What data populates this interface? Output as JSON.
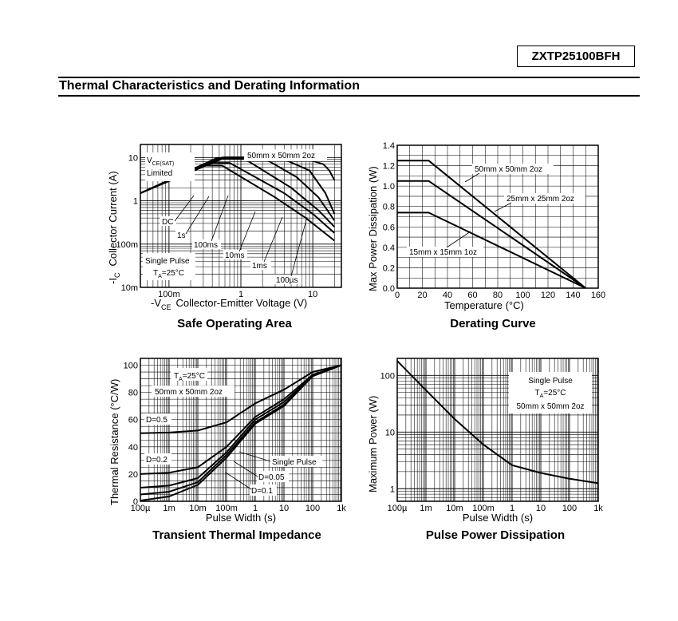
{
  "header": {
    "part_number": "ZXTP25100BFH",
    "section_title": "Thermal Characteristics and Derating Information"
  },
  "chart_data": [
    {
      "type": "line",
      "caption": "Safe Operating Area",
      "xlabel_prefix": "-V",
      "xlabel_sub": "CE",
      "xlabel_text": "Collector-Emitter Voltage (V)",
      "ylabel_prefix": "-I",
      "ylabel_sub": "C",
      "ylabel_text": "Collector Current (A)",
      "x_scale": "log",
      "y_scale": "log",
      "xlim": [
        0.04,
        25
      ],
      "ylim": [
        0.01,
        20
      ],
      "x_ticks": [
        {
          "v": 0.1,
          "label": "100m"
        },
        {
          "v": 1,
          "label": "1"
        },
        {
          "v": 10,
          "label": "10"
        }
      ],
      "y_ticks": [
        {
          "v": 0.01,
          "label": "10m"
        },
        {
          "v": 0.1,
          "label": "100m"
        },
        {
          "v": 1,
          "label": "1"
        },
        {
          "v": 10,
          "label": "10"
        }
      ],
      "grid": true,
      "annotations": {
        "vce_sat_main": "V",
        "vce_sat_sub": "CE(SAT)",
        "limited": "Limited",
        "board": "50mm x 50mm 2oz",
        "single_pulse": "Single Pulse",
        "ta_main": "T",
        "ta_sub": "A",
        "ta_rest": "=25°C"
      },
      "series": [
        {
          "name": "DC",
          "points": [
            [
              0.04,
              1.5
            ],
            [
              0.3,
              6.5
            ],
            [
              0.55,
              6.5
            ],
            [
              3,
              1.2
            ],
            [
              8,
              0.4
            ],
            [
              20,
              0.12
            ]
          ]
        },
        {
          "name": "1s",
          "points": [
            [
              0.04,
              1.5
            ],
            [
              0.35,
              7.5
            ],
            [
              0.7,
              7.5
            ],
            [
              4,
              1.5
            ],
            [
              10,
              0.5
            ],
            [
              20,
              0.18
            ]
          ]
        },
        {
          "name": "100ms",
          "points": [
            [
              0.04,
              1.5
            ],
            [
              0.45,
              9.5
            ],
            [
              1.1,
              9.5
            ],
            [
              5,
              2
            ],
            [
              12,
              0.6
            ],
            [
              20,
              0.25
            ]
          ]
        },
        {
          "name": "10ms",
          "points": [
            [
              0.04,
              1.5
            ],
            [
              0.55,
              10
            ],
            [
              2,
              10
            ],
            [
              6,
              3.5
            ],
            [
              12,
              1.2
            ],
            [
              20,
              0.35
            ]
          ]
        },
        {
          "name": "1ms",
          "points": [
            [
              0.04,
              1.5
            ],
            [
              0.6,
              10
            ],
            [
              3.5,
              10
            ],
            [
              9,
              5
            ],
            [
              15,
              1.5
            ],
            [
              20,
              0.5
            ]
          ]
        },
        {
          "name": "100µs",
          "points": [
            [
              0.04,
              1.5
            ],
            [
              0.6,
              10
            ],
            [
              7,
              10
            ],
            [
              14,
              7
            ],
            [
              17,
              5
            ],
            [
              20,
              3
            ]
          ]
        }
      ]
    },
    {
      "type": "line",
      "caption": "Derating Curve",
      "xlabel_text": "Temperature (°C)",
      "ylabel_text": "Max Power Dissipation (W)",
      "x_scale": "linear",
      "y_scale": "linear",
      "xlim": [
        0,
        160
      ],
      "ylim": [
        0,
        1.4
      ],
      "x_ticks": [
        {
          "v": 0,
          "label": "0"
        },
        {
          "v": 20,
          "label": "20"
        },
        {
          "v": 40,
          "label": "40"
        },
        {
          "v": 60,
          "label": "60"
        },
        {
          "v": 80,
          "label": "80"
        },
        {
          "v": 100,
          "label": "100"
        },
        {
          "v": 120,
          "label": "120"
        },
        {
          "v": 140,
          "label": "140"
        },
        {
          "v": 160,
          "label": "160"
        }
      ],
      "y_ticks": [
        {
          "v": 0,
          "label": "0.0"
        },
        {
          "v": 0.2,
          "label": "0.2"
        },
        {
          "v": 0.4,
          "label": "0.4"
        },
        {
          "v": 0.6,
          "label": "0.6"
        },
        {
          "v": 0.8,
          "label": "0.8"
        },
        {
          "v": 1.0,
          "label": "1.0"
        },
        {
          "v": 1.2,
          "label": "1.2"
        },
        {
          "v": 1.4,
          "label": "1.4"
        }
      ],
      "grid": true,
      "series": [
        {
          "name": "50mm x 50mm 2oz",
          "points": [
            [
              0,
              1.25
            ],
            [
              25,
              1.25
            ],
            [
              150,
              0
            ]
          ]
        },
        {
          "name": "25mm x 25mm 2oz",
          "points": [
            [
              0,
              1.05
            ],
            [
              25,
              1.05
            ],
            [
              150,
              0
            ]
          ]
        },
        {
          "name": "15mm x 15mm 1oz",
          "points": [
            [
              0,
              0.74
            ],
            [
              25,
              0.74
            ],
            [
              150,
              0
            ]
          ]
        }
      ]
    },
    {
      "type": "line",
      "caption": "Transient Thermal Impedance",
      "xlabel_text": "Pulse Width (s)",
      "ylabel_text": "Thermal Resistance (°C/W)",
      "x_scale": "log",
      "y_scale": "linear",
      "xlim": [
        0.0001,
        1000
      ],
      "ylim": [
        0,
        105
      ],
      "x_ticks": [
        {
          "v": 0.0001,
          "label": "100µ"
        },
        {
          "v": 0.001,
          "label": "1m"
        },
        {
          "v": 0.01,
          "label": "10m"
        },
        {
          "v": 0.1,
          "label": "100m"
        },
        {
          "v": 1,
          "label": "1"
        },
        {
          "v": 10,
          "label": "10"
        },
        {
          "v": 100,
          "label": "100"
        },
        {
          "v": 1000,
          "label": "1k"
        }
      ],
      "y_ticks": [
        {
          "v": 0,
          "label": "0"
        },
        {
          "v": 20,
          "label": "20"
        },
        {
          "v": 40,
          "label": "40"
        },
        {
          "v": 60,
          "label": "60"
        },
        {
          "v": 80,
          "label": "80"
        },
        {
          "v": 100,
          "label": "100"
        }
      ],
      "grid": true,
      "annotations": {
        "ta_main": "T",
        "ta_sub": "A",
        "ta_rest": "=25°C",
        "board": "50mm x 50mm 2oz"
      },
      "series": [
        {
          "name": "D=0.5",
          "points": [
            [
              0.0001,
              50
            ],
            [
              0.001,
              50.5
            ],
            [
              0.01,
              52
            ],
            [
              0.1,
              58
            ],
            [
              1,
              72
            ],
            [
              10,
              82
            ],
            [
              100,
              95
            ],
            [
              1000,
              100
            ]
          ]
        },
        {
          "name": "D=0.2",
          "points": [
            [
              0.0001,
              20
            ],
            [
              0.001,
              21
            ],
            [
              0.01,
              25
            ],
            [
              0.1,
              40
            ],
            [
              1,
              62
            ],
            [
              10,
              75
            ],
            [
              100,
              93
            ],
            [
              1000,
              100
            ]
          ]
        },
        {
          "name": "D=0.1",
          "points": [
            [
              0.0001,
              10
            ],
            [
              0.001,
              11.5
            ],
            [
              0.01,
              17
            ],
            [
              0.1,
              36
            ],
            [
              1,
              60
            ],
            [
              10,
              73
            ],
            [
              100,
              92
            ],
            [
              1000,
              100
            ]
          ]
        },
        {
          "name": "D=0.05",
          "points": [
            [
              0.0001,
              5
            ],
            [
              0.001,
              7
            ],
            [
              0.01,
              14
            ],
            [
              0.1,
              34
            ],
            [
              1,
              58
            ],
            [
              10,
              71
            ],
            [
              100,
              92
            ],
            [
              1000,
              100
            ]
          ]
        },
        {
          "name": "Single Pulse",
          "points": [
            [
              0.0001,
              0.5
            ],
            [
              0.001,
              3.5
            ],
            [
              0.01,
              12
            ],
            [
              0.1,
              32
            ],
            [
              1,
              57
            ],
            [
              10,
              70
            ],
            [
              100,
              92
            ],
            [
              1000,
              100
            ]
          ]
        }
      ]
    },
    {
      "type": "line",
      "caption": "Pulse Power Dissipation",
      "xlabel_text": "Pulse Width (s)",
      "ylabel_text": "Maximum Power (W)",
      "x_scale": "log",
      "y_scale": "log",
      "xlim": [
        0.0001,
        1000
      ],
      "ylim": [
        0.6,
        200
      ],
      "x_ticks": [
        {
          "v": 0.0001,
          "label": "100µ"
        },
        {
          "v": 0.001,
          "label": "1m"
        },
        {
          "v": 0.01,
          "label": "10m"
        },
        {
          "v": 0.1,
          "label": "100m"
        },
        {
          "v": 1,
          "label": "1"
        },
        {
          "v": 10,
          "label": "10"
        },
        {
          "v": 100,
          "label": "100"
        },
        {
          "v": 1000,
          "label": "1k"
        }
      ],
      "y_ticks": [
        {
          "v": 1,
          "label": "1"
        },
        {
          "v": 10,
          "label": "10"
        },
        {
          "v": 100,
          "label": "100"
        }
      ],
      "grid": true,
      "annotations": {
        "single_pulse": "Single Pulse",
        "ta_main": "T",
        "ta_sub": "A",
        "ta_rest": "=25°C",
        "board": "50mm x 50mm 2oz"
      },
      "series": [
        {
          "name": "Single Pulse",
          "points": [
            [
              0.0001,
              180
            ],
            [
              0.001,
              55
            ],
            [
              0.01,
              17
            ],
            [
              0.1,
              6
            ],
            [
              1,
              2.6
            ],
            [
              10,
              1.9
            ],
            [
              100,
              1.5
            ],
            [
              1000,
              1.25
            ]
          ]
        }
      ]
    }
  ]
}
